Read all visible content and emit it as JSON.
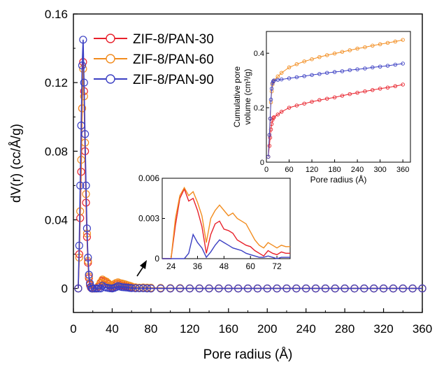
{
  "chart_data": [
    {
      "type": "scatter",
      "xlabel": "Pore radius (Å)",
      "ylabel": "dV(r) (cc/Å/g)",
      "xlim": [
        0,
        360
      ],
      "ylim": [
        -0.014,
        0.16
      ],
      "xticks": [
        "0",
        "40",
        "80",
        "120",
        "160",
        "200",
        "240",
        "280",
        "320",
        "360"
      ],
      "yticks": [
        "0",
        "0.04",
        "0.08",
        "0.12",
        "0.16"
      ],
      "legend_position": "top-left",
      "series": [
        {
          "name": "ZIF-8/PAN-30",
          "color": "#e8212b",
          "x": [
            5,
            6,
            7,
            8,
            9,
            10,
            11,
            12,
            13,
            14,
            15,
            16,
            17,
            18,
            19,
            20,
            22,
            24,
            26,
            28,
            30,
            32,
            34,
            36,
            38,
            40,
            42,
            44,
            46,
            48,
            50,
            52,
            54,
            56,
            58,
            60,
            64,
            68,
            72,
            76,
            80,
            90,
            100,
            110,
            120,
            130,
            140,
            150,
            160,
            170,
            180,
            190,
            200,
            210,
            220,
            230,
            240,
            250,
            260,
            270,
            280,
            290,
            300,
            310,
            320,
            330,
            340,
            350,
            360
          ],
          "y": [
            0,
            0.02,
            0.041,
            0.068,
            0.105,
            0.132,
            0.115,
            0.08,
            0.05,
            0.03,
            0.015,
            0.006,
            0.002,
            0.0005,
            0,
            0,
            0,
            0,
            0.001,
            0.003,
            0.0045,
            0.004,
            0.0035,
            0.0025,
            0.0012,
            0.0005,
            0.0012,
            0.0022,
            0.0026,
            0.002,
            0.0017,
            0.0016,
            0.0013,
            0.0011,
            0.0008,
            0.0006,
            0.0003,
            0.0002,
            0.0004,
            0.0003,
            0,
            0,
            0,
            0,
            0,
            0,
            0,
            0,
            0,
            0,
            0,
            0,
            0,
            0,
            0,
            0,
            0,
            0,
            0,
            0,
            0,
            0,
            0,
            0,
            0,
            0,
            0,
            0,
            0
          ]
        },
        {
          "name": "ZIF-8/PAN-60",
          "color": "#f28c1e",
          "x": [
            5,
            6,
            7,
            8,
            9,
            10,
            11,
            12,
            13,
            14,
            15,
            16,
            17,
            18,
            19,
            20,
            22,
            24,
            26,
            28,
            30,
            32,
            34,
            36,
            38,
            40,
            42,
            44,
            46,
            48,
            50,
            52,
            54,
            56,
            58,
            60,
            64,
            68,
            72,
            76,
            80,
            90,
            100,
            110,
            120,
            130,
            140,
            150,
            160,
            170,
            180,
            190,
            200,
            210,
            220,
            230,
            240,
            250,
            260,
            270,
            280,
            290,
            300,
            310,
            320,
            330,
            340,
            350,
            360
          ],
          "y": [
            0,
            0.018,
            0.045,
            0.075,
            0.105,
            0.128,
            0.112,
            0.085,
            0.055,
            0.032,
            0.016,
            0.007,
            0.0025,
            0.001,
            0.0003,
            0,
            0,
            0,
            0.0015,
            0.0035,
            0.0052,
            0.0045,
            0.004,
            0.003,
            0.0018,
            0.0012,
            0.0025,
            0.0032,
            0.0036,
            0.0031,
            0.0029,
            0.0026,
            0.0023,
            0.0019,
            0.0016,
            0.0012,
            0.0007,
            0.0005,
            0.0006,
            0.0005,
            0.0004,
            0.0003,
            0.0002,
            0.0002,
            0.0001,
            0.0001,
            0.0001,
            0.0001,
            0,
            0,
            0,
            0,
            0,
            0,
            0,
            0,
            0,
            0,
            0,
            0,
            0,
            0,
            0,
            0,
            0,
            0,
            0,
            0,
            0
          ]
        },
        {
          "name": "ZIF-8/PAN-90",
          "color": "#3b3fc3",
          "x": [
            5,
            6,
            7,
            8,
            9,
            10,
            11,
            12,
            13,
            14,
            15,
            16,
            17,
            18,
            19,
            20,
            22,
            24,
            26,
            28,
            30,
            32,
            34,
            36,
            38,
            40,
            42,
            44,
            46,
            48,
            50,
            52,
            54,
            56,
            58,
            60,
            64,
            68,
            72,
            76,
            80,
            90,
            100,
            110,
            120,
            130,
            140,
            150,
            160,
            170,
            180,
            190,
            200,
            210,
            220,
            230,
            240,
            250,
            260,
            270,
            280,
            290,
            300,
            310,
            320,
            330,
            340,
            350,
            360
          ],
          "y": [
            0,
            0.025,
            0.06,
            0.095,
            0.13,
            0.145,
            0.12,
            0.09,
            0.06,
            0.035,
            0.018,
            0.008,
            0.003,
            0.001,
            0,
            0,
            0,
            0,
            0,
            0,
            0.0016,
            0.0008,
            0.0005,
            0.0003,
            0.0001,
            0,
            0.0003,
            0.0008,
            0.0014,
            0.0011,
            0.0008,
            0.0007,
            0.0006,
            0.0005,
            0.0003,
            0.0002,
            0.0001,
            0.0001,
            0.0001,
            0,
            0,
            0,
            0,
            0,
            0,
            0,
            0,
            0,
            0,
            0,
            0,
            0,
            0,
            0,
            0,
            0,
            0,
            0,
            0,
            0,
            0,
            0,
            0,
            0,
            0,
            0,
            0,
            0,
            0
          ]
        }
      ]
    },
    {
      "type": "line",
      "xlabel": "",
      "ylabel": "",
      "xlim": [
        20,
        78
      ],
      "ylim": [
        0,
        0.006
      ],
      "xticks": [
        "24",
        "36",
        "48",
        "60",
        "72"
      ],
      "yticks": [
        "0",
        "0.003",
        "0.006"
      ],
      "series": [
        {
          "name": "",
          "color": "#e8212b",
          "x": [
            20,
            22,
            24,
            26,
            28,
            30,
            32,
            34,
            36,
            38,
            40,
            42,
            44,
            46,
            48,
            50,
            52,
            54,
            56,
            58,
            60,
            62,
            64,
            66,
            68,
            70,
            72,
            74,
            76,
            78
          ],
          "y": [
            0,
            0,
            0,
            0.0025,
            0.0045,
            0.0052,
            0.0043,
            0.0045,
            0.0036,
            0.0024,
            0.0004,
            0.0018,
            0.0026,
            0.0028,
            0.0022,
            0.0021,
            0.0019,
            0.0014,
            0.0012,
            0.001,
            0.0009,
            0.0006,
            0.0004,
            0.0002,
            0.0006,
            0.0004,
            0.0003,
            0.0005,
            0.0004,
            0.0004
          ]
        },
        {
          "name": "",
          "color": "#f28c1e",
          "x": [
            20,
            22,
            24,
            26,
            28,
            30,
            32,
            34,
            36,
            38,
            40,
            42,
            44,
            46,
            48,
            50,
            52,
            54,
            56,
            58,
            60,
            62,
            64,
            66,
            68,
            70,
            72,
            74,
            76,
            78
          ],
          "y": [
            0,
            0,
            0,
            0.003,
            0.0047,
            0.0053,
            0.0047,
            0.005,
            0.0042,
            0.0032,
            0.0012,
            0.003,
            0.0036,
            0.004,
            0.0036,
            0.0032,
            0.0034,
            0.003,
            0.0028,
            0.0026,
            0.002,
            0.0014,
            0.001,
            0.0008,
            0.0012,
            0.001,
            0.0008,
            0.001,
            0.0009,
            0.0009
          ]
        },
        {
          "name": "",
          "color": "#3b3fc3",
          "x": [
            20,
            22,
            24,
            26,
            28,
            30,
            32,
            34,
            36,
            38,
            40,
            42,
            44,
            46,
            48,
            50,
            52,
            54,
            56,
            58,
            60,
            62,
            64,
            66,
            68,
            70,
            72,
            74,
            76,
            78
          ],
          "y": [
            0,
            0,
            0,
            0,
            0,
            0,
            0.0004,
            0.0018,
            0.0012,
            0.0008,
            0.0001,
            0.0005,
            0.001,
            0.0014,
            0.0012,
            0.001,
            0.0008,
            0.0007,
            0.0006,
            0.0004,
            0.0003,
            0.0002,
            0.0001,
            0.0001,
            0.0002,
            0.0001,
            0,
            0.0001,
            0.0001,
            0.0001
          ]
        }
      ]
    },
    {
      "type": "scatter",
      "xlabel": "Pore radius (Å)",
      "ylabel": "Cumulative pore volume (cm³/g)",
      "ylabel_lines": [
        "Cumulative pore",
        "volume (cm³/g)"
      ],
      "xlim": [
        0,
        380
      ],
      "ylim": [
        0,
        0.48
      ],
      "xticks": [
        "0",
        "60",
        "120",
        "180",
        "240",
        "300",
        "360"
      ],
      "yticks": [
        "0",
        "0.2",
        "0.4"
      ],
      "series": [
        {
          "name": "",
          "color": "#e8212b",
          "x": [
            5,
            8,
            10,
            12,
            14,
            16,
            18,
            20,
            30,
            40,
            60,
            80,
            100,
            120,
            140,
            160,
            180,
            200,
            220,
            240,
            260,
            280,
            300,
            320,
            340,
            360
          ],
          "y": [
            0.02,
            0.06,
            0.09,
            0.12,
            0.14,
            0.155,
            0.162,
            0.165,
            0.175,
            0.185,
            0.2,
            0.208,
            0.215,
            0.222,
            0.228,
            0.233,
            0.238,
            0.244,
            0.25,
            0.255,
            0.26,
            0.265,
            0.27,
            0.274,
            0.279,
            0.285
          ]
        },
        {
          "name": "",
          "color": "#f28c1e",
          "x": [
            5,
            8,
            10,
            12,
            14,
            16,
            18,
            20,
            30,
            40,
            60,
            80,
            100,
            120,
            140,
            160,
            180,
            200,
            220,
            240,
            260,
            280,
            300,
            320,
            340,
            360
          ],
          "y": [
            0.02,
            0.1,
            0.16,
            0.22,
            0.26,
            0.285,
            0.295,
            0.3,
            0.315,
            0.328,
            0.348,
            0.36,
            0.37,
            0.378,
            0.386,
            0.393,
            0.399,
            0.405,
            0.411,
            0.417,
            0.422,
            0.428,
            0.433,
            0.438,
            0.443,
            0.449
          ]
        },
        {
          "name": "",
          "color": "#3b3fc3",
          "x": [
            5,
            8,
            10,
            12,
            14,
            16,
            18,
            20,
            30,
            40,
            60,
            80,
            100,
            120,
            140,
            160,
            180,
            200,
            220,
            240,
            260,
            280,
            300,
            320,
            340,
            360
          ],
          "y": [
            0.02,
            0.1,
            0.16,
            0.23,
            0.27,
            0.29,
            0.297,
            0.3,
            0.302,
            0.304,
            0.308,
            0.312,
            0.316,
            0.32,
            0.324,
            0.328,
            0.331,
            0.334,
            0.338,
            0.341,
            0.344,
            0.348,
            0.351,
            0.354,
            0.358,
            0.362
          ]
        }
      ]
    }
  ]
}
